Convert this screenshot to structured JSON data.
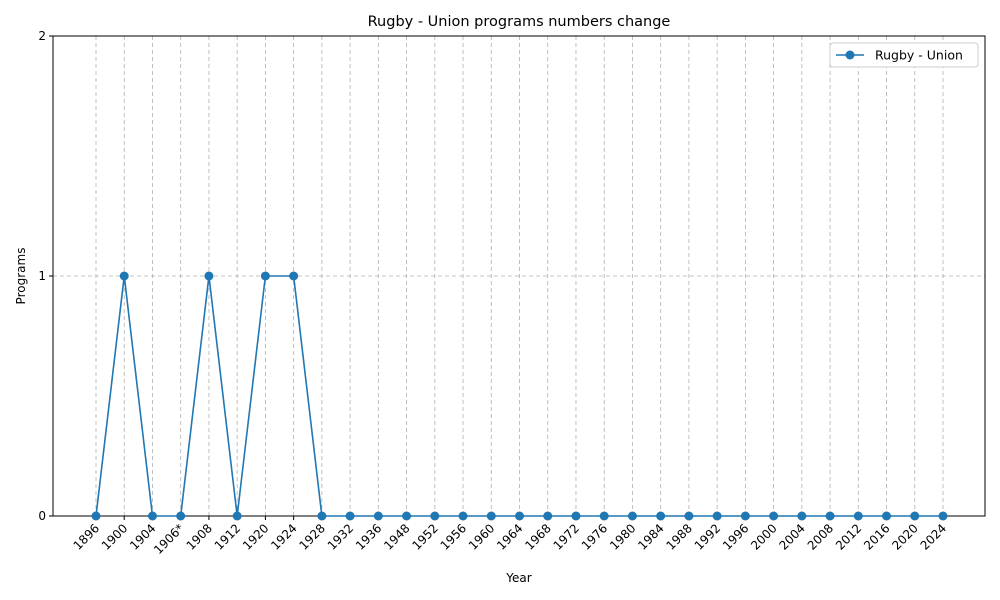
{
  "chart_data": {
    "type": "line",
    "title": "Rugby - Union programs numbers change",
    "xlabel": "Year",
    "ylabel": "Programs",
    "categories": [
      "1896",
      "1900",
      "1904",
      "1906*",
      "1908",
      "1912",
      "1920",
      "1924",
      "1928",
      "1932",
      "1936",
      "1948",
      "1952",
      "1956",
      "1960",
      "1964",
      "1968",
      "1972",
      "1976",
      "1980",
      "1984",
      "1988",
      "1992",
      "1996",
      "2000",
      "2004",
      "2008",
      "2012",
      "2016",
      "2020",
      "2024"
    ],
    "yticks": [
      0,
      1,
      2
    ],
    "ylim": [
      0,
      2
    ],
    "grid": true,
    "legend_position": "top-right",
    "series": [
      {
        "name": "Rugby - Union",
        "color": "#1f77b4",
        "marker": "circle",
        "values": [
          0,
          1,
          0,
          0,
          1,
          0,
          1,
          1,
          0,
          0,
          0,
          0,
          0,
          0,
          0,
          0,
          0,
          0,
          0,
          0,
          0,
          0,
          0,
          0,
          0,
          0,
          0,
          0,
          0,
          0,
          0
        ]
      }
    ]
  }
}
